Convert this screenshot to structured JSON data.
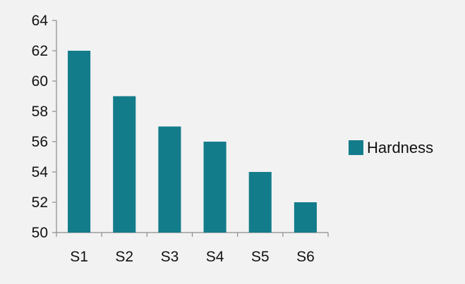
{
  "chart_data": {
    "type": "bar",
    "categories": [
      "S1",
      "S2",
      "S3",
      "S4",
      "S5",
      "S6"
    ],
    "series": [
      {
        "name": "Hardness",
        "values": [
          62,
          59,
          57,
          56,
          54,
          52
        ],
        "color": "#137c8b"
      }
    ],
    "ylim": [
      50,
      64
    ],
    "yticks": [
      50,
      52,
      54,
      56,
      58,
      60,
      62,
      64
    ],
    "grid": false,
    "legend_position": "right",
    "colors": {
      "background": "#f2f2f2",
      "axis": "#8c8c8c",
      "text": "#111111"
    }
  }
}
